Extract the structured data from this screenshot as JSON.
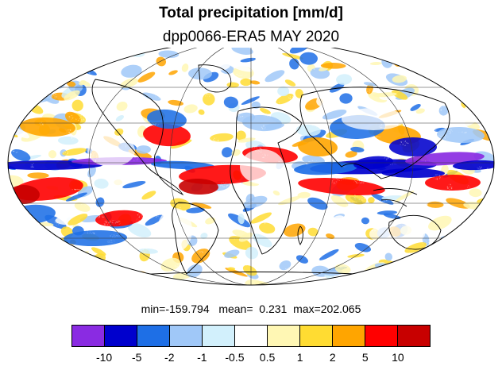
{
  "title": "Total precipitation [mm/d]",
  "subtitle": "dpp0066-ERA5 MAY 2020",
  "stats": {
    "min_label": "min=",
    "min": "-159.794",
    "mean_label": "mean=",
    "mean": "0.231",
    "max_label": "max=",
    "max": "202.065"
  },
  "colorbar": {
    "colors": [
      "#8a2be2",
      "#0000cd",
      "#1e6fe6",
      "#a0c8f8",
      "#d2f0fc",
      "#ffffff",
      "#fff7b4",
      "#ffdc32",
      "#ffa500",
      "#ff0000",
      "#c80000"
    ],
    "ticks": [
      "-10",
      "-5",
      "-2",
      "-1",
      "-0.5",
      "0.5",
      "1",
      "2",
      "5",
      "10"
    ]
  },
  "map": {
    "projection": "Mollweide",
    "ocean_color": "#ffffff",
    "coastline_color": "#000000"
  }
}
